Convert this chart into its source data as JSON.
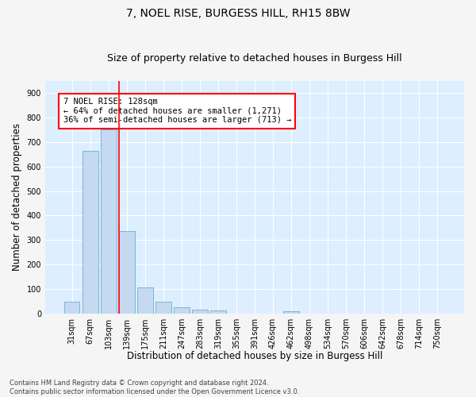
{
  "title": "7, NOEL RISE, BURGESS HILL, RH15 8BW",
  "subtitle": "Size of property relative to detached houses in Burgess Hill",
  "xlabel": "Distribution of detached houses by size in Burgess Hill",
  "ylabel": "Number of detached properties",
  "footer_line1": "Contains HM Land Registry data © Crown copyright and database right 2024.",
  "footer_line2": "Contains public sector information licensed under the Open Government Licence v3.0.",
  "bar_labels": [
    "31sqm",
    "67sqm",
    "103sqm",
    "139sqm",
    "175sqm",
    "211sqm",
    "247sqm",
    "283sqm",
    "319sqm",
    "355sqm",
    "391sqm",
    "426sqm",
    "462sqm",
    "498sqm",
    "534sqm",
    "570sqm",
    "606sqm",
    "642sqm",
    "678sqm",
    "714sqm",
    "750sqm"
  ],
  "bar_values": [
    50,
    665,
    750,
    335,
    108,
    50,
    25,
    17,
    13,
    0,
    0,
    0,
    10,
    0,
    0,
    0,
    0,
    0,
    0,
    0,
    0
  ],
  "bar_color": "#c5d9f0",
  "bar_edge_color": "#6baed6",
  "vline_x": 2.57,
  "vline_color": "red",
  "annotation_text": "7 NOEL RISE: 128sqm\n← 64% of detached houses are smaller (1,271)\n36% of semi-detached houses are larger (713) →",
  "annotation_box_color": "#ffffff",
  "annotation_box_edge": "red",
  "ylim": [
    0,
    950
  ],
  "yticks": [
    0,
    100,
    200,
    300,
    400,
    500,
    600,
    700,
    800,
    900
  ],
  "fig_bg_color": "#f5f5f5",
  "plot_bg_color": "#ddeeff",
  "grid_color": "#ffffff",
  "title_fontsize": 10,
  "subtitle_fontsize": 9,
  "tick_fontsize": 7,
  "ylabel_fontsize": 8.5,
  "xlabel_fontsize": 8.5,
  "footer_fontsize": 6,
  "annotation_fontsize": 7.5
}
